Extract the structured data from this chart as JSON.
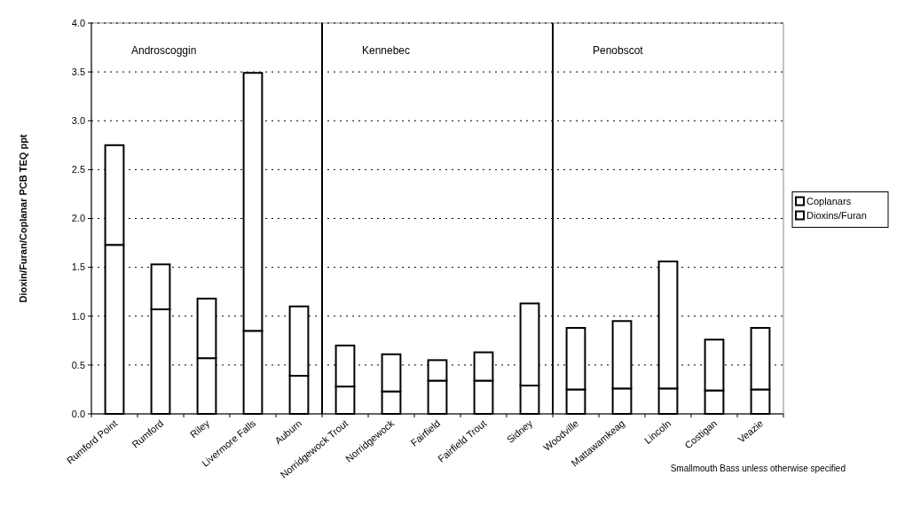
{
  "chart_data": {
    "type": "bar",
    "stacked": true,
    "ylabel": "Dioxin/Furan/Coplanar PCB TEQ ppt",
    "categories": [
      "Rumford Point",
      "Rumford",
      "Riley",
      "Livermore Falls",
      "Auburn",
      "Norridgewock Trout",
      "Norridgewock",
      "Fairfield",
      "Fairfield Trout",
      "Sidney",
      "Woodville",
      "Mattawamkeag",
      "Lincoln",
      "Costigan",
      "Veazie"
    ],
    "series": [
      {
        "name": "Dioxins/Furan",
        "color": "#ffffff",
        "values": [
          1.73,
          1.07,
          0.57,
          0.85,
          0.39,
          0.28,
          0.23,
          0.34,
          0.34,
          0.29,
          0.25,
          0.26,
          0.26,
          0.24,
          0.25
        ]
      },
      {
        "name": "Coplanars",
        "color": "#ffffff",
        "values": [
          1.02,
          0.46,
          0.61,
          2.64,
          0.71,
          0.42,
          0.38,
          0.21,
          0.29,
          0.84,
          0.63,
          0.69,
          1.3,
          0.52,
          0.63
        ]
      }
    ],
    "ylim": [
      0,
      4
    ],
    "yticks": [
      {
        "value": 0,
        "label": "0.0"
      },
      {
        "value": 0.5,
        "label": "0.5"
      },
      {
        "value": 1,
        "label": "1.0"
      },
      {
        "value": 1.5,
        "label": "1.5"
      },
      {
        "value": 2,
        "label": "2.0"
      },
      {
        "value": 2.5,
        "label": "2.5"
      },
      {
        "value": 3,
        "label": "3.0"
      },
      {
        "value": 3.5,
        "label": "3.5"
      },
      {
        "value": 4,
        "label": "4.0"
      }
    ],
    "grid": "y",
    "legend": "right",
    "line_style": "dotted",
    "ref_lines": [
      {
        "axis": "x",
        "value": "Norridgewock Trout",
        "color": "#000000"
      },
      {
        "axis": "x",
        "value": "Woodville",
        "color": "#000000"
      }
    ],
    "annotations": [
      "Androscoggin",
      "Kennebec",
      "Penobscot",
      "Smallmouth Bass unless otherwise specified"
    ]
  }
}
